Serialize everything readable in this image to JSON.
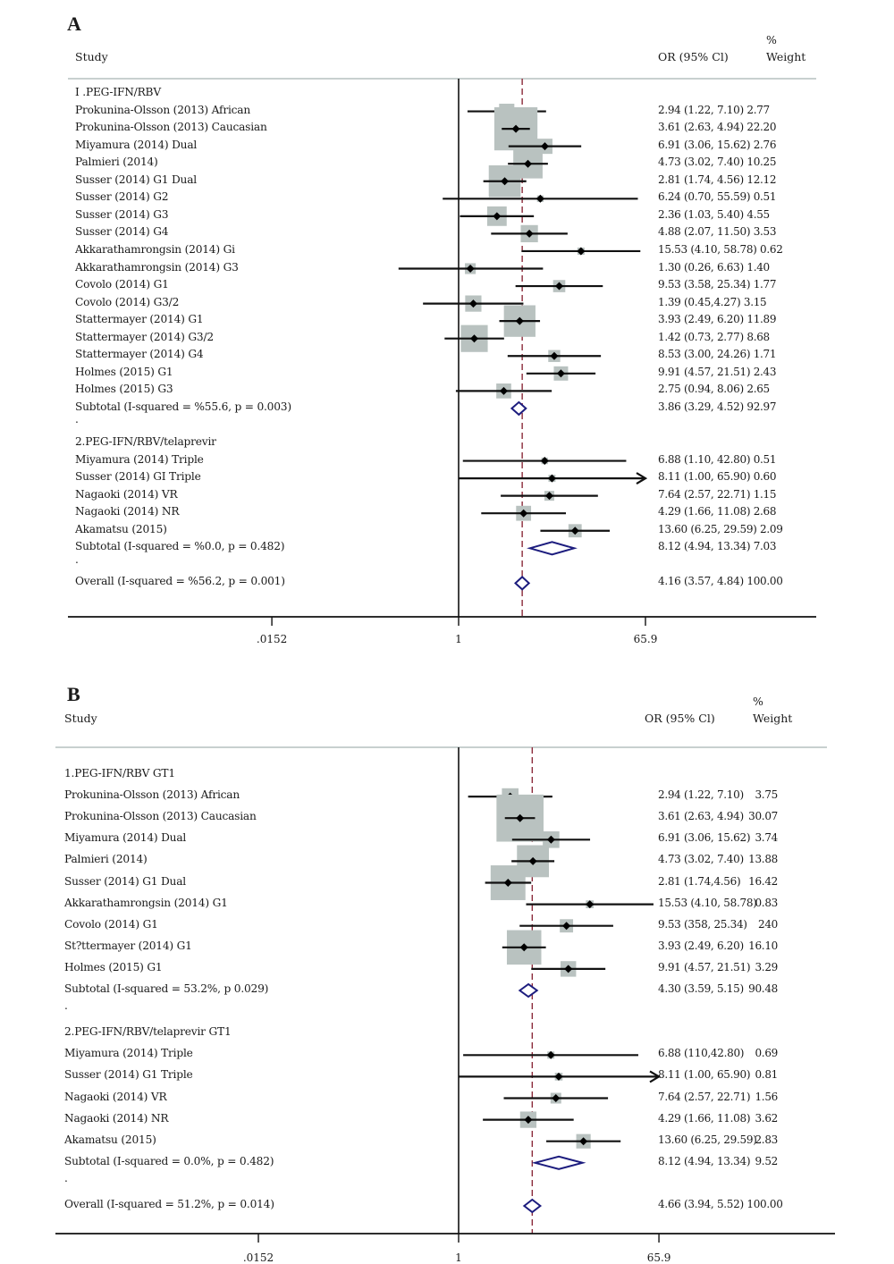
{
  "chart_data": [
    {
      "type": "forest",
      "panel": "A",
      "xscale": "log",
      "ticks": [
        ".0152",
        "1",
        "65.9"
      ],
      "tick_values": [
        0.0152,
        1,
        65.9
      ],
      "null_line": 1,
      "overall_line": 4.16,
      "headers": {
        "study": "Study",
        "or": "OR (95% Cl)",
        "weight_pct": "%",
        "weight": "Weight"
      },
      "colors": {
        "box": "#b9c2c0",
        "diamond": "#1c1c7e",
        "overall_line": "#8b2a3a",
        "line": "#111111",
        "rule": "#c8d0cf"
      },
      "rows": [
        {
          "kind": "group",
          "label": "I .PEG-IFN/RBV"
        },
        {
          "kind": "study",
          "label": "Prokunina-Olsson (2013) African",
          "or": 2.94,
          "lo": 1.22,
          "hi": 7.1,
          "weight": 2.77,
          "text": "2.94 (1.22, 7.10) 2.77"
        },
        {
          "kind": "study",
          "label": "Prokunina-Olsson (2013) Caucasian",
          "or": 3.61,
          "lo": 2.63,
          "hi": 4.94,
          "weight": 22.2,
          "text": "3.61 (2.63, 4.94) 22.20"
        },
        {
          "kind": "study",
          "label": "Miyamura (2014) Dual",
          "or": 6.91,
          "lo": 3.06,
          "hi": 15.62,
          "weight": 2.76,
          "text": "6.91 (3.06, 15.62) 2.76"
        },
        {
          "kind": "study",
          "label": "Palmieri (2014)",
          "or": 4.73,
          "lo": 3.02,
          "hi": 7.4,
          "weight": 10.25,
          "text": "4.73 (3.02, 7.40) 10.25"
        },
        {
          "kind": "study",
          "label": "Susser (2014) G1 Dual",
          "or": 2.81,
          "lo": 1.74,
          "hi": 4.56,
          "weight": 12.12,
          "text": "2.81 (1.74, 4.56) 12.12"
        },
        {
          "kind": "study",
          "label": "Susser (2014) G2",
          "or": 6.24,
          "lo": 0.7,
          "hi": 55.59,
          "weight": 0.51,
          "text": "6.24 (0.70, 55.59) 0.51"
        },
        {
          "kind": "study",
          "label": "Susser (2014) G3",
          "or": 2.36,
          "lo": 1.03,
          "hi": 5.4,
          "weight": 4.55,
          "text": "2.36 (1.03, 5.40) 4.55"
        },
        {
          "kind": "study",
          "label": "Susser (2014) G4",
          "or": 4.88,
          "lo": 2.07,
          "hi": 11.5,
          "weight": 3.53,
          "text": "4.88 (2.07, 11.50) 3.53"
        },
        {
          "kind": "study",
          "label": "Akkarathamrongsin (2014) Gi",
          "or": 15.53,
          "lo": 4.1,
          "hi": 58.78,
          "weight": 0.62,
          "text": "15.53 (4.10, 58.78) 0.62"
        },
        {
          "kind": "study",
          "label": "Akkarathamrongsin (2014) G3",
          "or": 1.3,
          "lo": 0.26,
          "hi": 6.63,
          "weight": 1.4,
          "text": "1.30 (0.26, 6.63) 1.40"
        },
        {
          "kind": "study",
          "label": "Covolo (2014) G1",
          "or": 9.53,
          "lo": 3.58,
          "hi": 25.34,
          "weight": 1.77,
          "text": "9.53 (3.58, 25.34) 1.77"
        },
        {
          "kind": "study",
          "label": "Covolo (2014) G3/2",
          "or": 1.39,
          "lo": 0.45,
          "hi": 4.27,
          "weight": 3.15,
          "text": "1.39 (0.45,4.27) 3.15"
        },
        {
          "kind": "study",
          "label": "Stattermayer (2014) G1",
          "or": 3.93,
          "lo": 2.49,
          "hi": 6.2,
          "weight": 11.89,
          "text": "3.93 (2.49, 6.20) 11.89"
        },
        {
          "kind": "study",
          "label": "Stattermayer (2014) G3/2",
          "or": 1.42,
          "lo": 0.73,
          "hi": 2.77,
          "weight": 8.68,
          "text": "1.42 (0.73, 2.77) 8.68"
        },
        {
          "kind": "study",
          "label": "Stattermayer (2014) G4",
          "or": 8.53,
          "lo": 3.0,
          "hi": 24.26,
          "weight": 1.71,
          "text": "8.53 (3.00, 24.26) 1.71"
        },
        {
          "kind": "study",
          "label": "Holmes (2015) G1",
          "or": 9.91,
          "lo": 4.57,
          "hi": 21.51,
          "weight": 2.43,
          "text": "9.91 (4.57, 21.51) 2.43"
        },
        {
          "kind": "study",
          "label": "Holmes (2015) G3",
          "or": 2.75,
          "lo": 0.94,
          "hi": 8.06,
          "weight": 2.65,
          "text": "2.75 (0.94, 8.06) 2.65"
        },
        {
          "kind": "subtotal",
          "label": "Subtotal (I-squared = %55.6, p = 0.003)",
          "or": 3.86,
          "lo": 3.29,
          "hi": 4.52,
          "weight": 92.97,
          "text": "3.86 (3.29, 4.52) 92.97"
        },
        {
          "kind": "spacer",
          "label": "."
        },
        {
          "kind": "group",
          "label": "2.PEG-IFN/RBV/telaprevir"
        },
        {
          "kind": "study",
          "label": "Miyamura (2014) Triple",
          "or": 6.88,
          "lo": 1.1,
          "hi": 42.8,
          "weight": 0.51,
          "text": "6.88 (1.10, 42.80) 0.51"
        },
        {
          "kind": "study",
          "label": "Susser (2014) GI Triple",
          "or": 8.11,
          "lo": 1.0,
          "hi": 65.9,
          "weight": 0.6,
          "text": "8.11 (1.00, 65.90) 0.60",
          "arrow": true
        },
        {
          "kind": "study",
          "label": "Nagaoki (2014) VR",
          "or": 7.64,
          "lo": 2.57,
          "hi": 22.71,
          "weight": 1.15,
          "text": "7.64 (2.57, 22.71) 1.15"
        },
        {
          "kind": "study",
          "label": "Nagaoki (2014) NR",
          "or": 4.29,
          "lo": 1.66,
          "hi": 11.08,
          "weight": 2.68,
          "text": "4.29 (1.66, 11.08) 2.68"
        },
        {
          "kind": "study",
          "label": "Akamatsu (2015)",
          "or": 13.6,
          "lo": 6.25,
          "hi": 29.59,
          "weight": 2.09,
          "text": "13.60 (6.25, 29.59) 2.09"
        },
        {
          "kind": "subtotal",
          "label": "Subtotal (I-squared = %0.0, p = 0.482)",
          "or": 8.12,
          "lo": 4.94,
          "hi": 13.34,
          "weight": 7.03,
          "text": "8.12 (4.94, 13.34) 7.03"
        },
        {
          "kind": "spacer",
          "label": "."
        },
        {
          "kind": "overall",
          "label": "Overall (I-squared = %56.2, p = 0.001)",
          "or": 4.16,
          "lo": 3.57,
          "hi": 4.84,
          "weight": 100.0,
          "text": "4.16 (3.57, 4.84) 100.00"
        }
      ]
    },
    {
      "type": "forest",
      "panel": "B",
      "xscale": "log",
      "ticks": [
        ".0152",
        "1",
        "65.9"
      ],
      "tick_values": [
        0.0152,
        1,
        65.9
      ],
      "null_line": 1,
      "overall_line": 4.66,
      "headers": {
        "study": "Study",
        "or": "OR (95% Cl)",
        "weight_pct": "%",
        "weight": "Weight"
      },
      "colors": {
        "box": "#b9c2c0",
        "diamond": "#1c1c7e",
        "overall_line": "#8b2a3a",
        "line": "#111111",
        "rule": "#c8d0cf"
      },
      "rows": [
        {
          "kind": "group",
          "label": "1.PEG-IFN/RBV GT1"
        },
        {
          "kind": "study",
          "label": "Prokunina-Olsson (2013) African",
          "or": 2.94,
          "lo": 1.22,
          "hi": 7.1,
          "weight": 3.75,
          "text": "2.94 (1.22, 7.10)",
          "wtext": "3.75"
        },
        {
          "kind": "study",
          "label": "Prokunina-Olsson (2013) Caucasian",
          "or": 3.61,
          "lo": 2.63,
          "hi": 4.94,
          "weight": 30.07,
          "text": "3.61 (2.63, 4.94)",
          "wtext": "30.07"
        },
        {
          "kind": "study",
          "label": "Miyamura (2014) Dual",
          "or": 6.91,
          "lo": 3.06,
          "hi": 15.62,
          "weight": 3.74,
          "text": "6.91 (3.06, 15.62)",
          "wtext": "3.74"
        },
        {
          "kind": "study",
          "label": "Palmieri (2014)",
          "or": 4.73,
          "lo": 3.02,
          "hi": 7.4,
          "weight": 13.88,
          "text": "4.73 (3.02, 7.40)",
          "wtext": "13.88"
        },
        {
          "kind": "study",
          "label": "Susser (2014) G1 Dual",
          "or": 2.81,
          "lo": 1.74,
          "hi": 4.56,
          "weight": 16.42,
          "text": "2.81 (1.74,4.56)",
          "wtext": "16.42"
        },
        {
          "kind": "study",
          "label": "Akkarathamrongsin (2014) G1",
          "or": 15.53,
          "lo": 4.1,
          "hi": 58.78,
          "weight": 0.83,
          "text": "15.53 (4.10, 58.78)",
          "wtext": "0.83"
        },
        {
          "kind": "study",
          "label": "Covolo (2014) G1",
          "or": 9.53,
          "lo": 3.58,
          "hi": 25.34,
          "weight": 2.4,
          "text": "9.53 (358, 25.34)",
          "wtext": "240"
        },
        {
          "kind": "study",
          "label": "St?ttermayer (2014) G1",
          "or": 3.93,
          "lo": 2.49,
          "hi": 6.2,
          "weight": 16.1,
          "text": "3.93 (2.49, 6.20)",
          "wtext": "16.10"
        },
        {
          "kind": "study",
          "label": "Holmes (2015) G1",
          "or": 9.91,
          "lo": 4.57,
          "hi": 21.51,
          "weight": 3.29,
          "text": "9.91 (4.57, 21.51)",
          "wtext": "3.29"
        },
        {
          "kind": "subtotal",
          "label": "Subtotal (I-squared = 53.2%, p 0.029)",
          "or": 4.3,
          "lo": 3.59,
          "hi": 5.15,
          "weight": 90.48,
          "text": "4.30 (3.59, 5.15)",
          "wtext": "90.48"
        },
        {
          "kind": "spacer",
          "label": "."
        },
        {
          "kind": "group",
          "label": "2.PEG-IFN/RBV/telaprevir GT1"
        },
        {
          "kind": "study",
          "label": "Miyamura (2014) Triple",
          "or": 6.88,
          "lo": 1.1,
          "hi": 42.8,
          "weight": 0.69,
          "text": "6.88 (110,42.80)",
          "wtext": "0.69"
        },
        {
          "kind": "study",
          "label": "Susser (2014) G1 Triple",
          "or": 8.11,
          "lo": 1.0,
          "hi": 65.9,
          "weight": 0.81,
          "text": "8.11 (1.00, 65.90)",
          "wtext": "0.81",
          "arrow": true
        },
        {
          "kind": "study",
          "label": "Nagaoki (2014) VR",
          "or": 7.64,
          "lo": 2.57,
          "hi": 22.71,
          "weight": 1.56,
          "text": "7.64 (2.57, 22.71)",
          "wtext": "1.56"
        },
        {
          "kind": "study",
          "label": "Nagaoki (2014) NR",
          "or": 4.29,
          "lo": 1.66,
          "hi": 11.08,
          "weight": 3.62,
          "text": "4.29 (1.66, 11.08)",
          "wtext": "3.62"
        },
        {
          "kind": "study",
          "label": "Akamatsu (2015)",
          "or": 13.6,
          "lo": 6.25,
          "hi": 29.59,
          "weight": 2.83,
          "text": "13.60 (6.25, 29.59)",
          "wtext": "2.83"
        },
        {
          "kind": "subtotal",
          "label": "Subtotal (I-squared = 0.0%, p = 0.482)",
          "or": 8.12,
          "lo": 4.94,
          "hi": 13.34,
          "weight": 9.52,
          "text": "8.12 (4.94, 13.34)",
          "wtext": "9.52"
        },
        {
          "kind": "spacer",
          "label": "."
        },
        {
          "kind": "overall",
          "label": "Overall (I-squared = 51.2%, p = 0.014)",
          "or": 4.66,
          "lo": 3.94,
          "hi": 5.52,
          "weight": 100.0,
          "text": "4.66 (3.94, 5.52) 100.00"
        }
      ]
    }
  ],
  "panels": [
    {
      "letter": "A"
    },
    {
      "letter": "B"
    }
  ]
}
